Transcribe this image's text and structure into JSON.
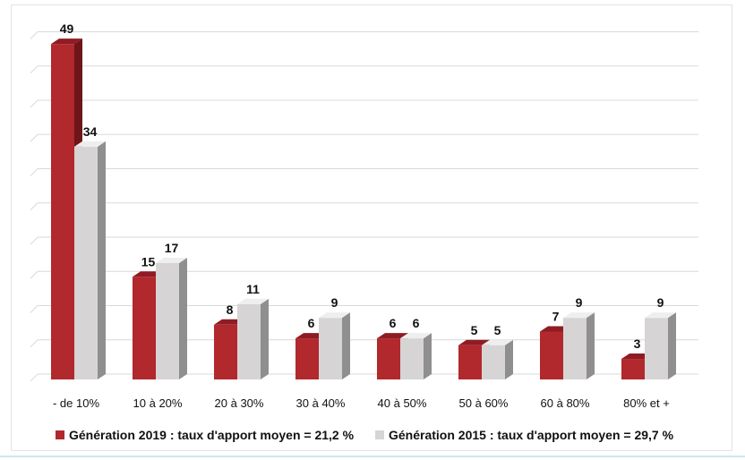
{
  "chart_data": {
    "type": "bar",
    "categories": [
      "- de 10%",
      "10 à 20%",
      "20 à 30%",
      "30 à 40%",
      "40 à 50%",
      "50 à 60%",
      "60 à 80%",
      "80% et +"
    ],
    "series": [
      {
        "name": "Génération 2019 : taux d'apport moyen = 21,2 %",
        "values": [
          49,
          15,
          8,
          6,
          6,
          5,
          7,
          3
        ],
        "color": "#b1282d",
        "top_color": "#8f1c22",
        "side_color": "#6f1418"
      },
      {
        "name": "Génération 2015 : taux d'apport moyen = 29,7 %",
        "values": [
          34,
          17,
          11,
          9,
          6,
          5,
          9,
          9
        ],
        "color": "#d7d4d6",
        "top_color": "#eeeeee",
        "side_color": "#8f8f8f"
      }
    ],
    "ylim": [
      0,
      50
    ],
    "gridlines": true,
    "legend_position": "bottom",
    "show_values": true,
    "style": "3d-column"
  }
}
